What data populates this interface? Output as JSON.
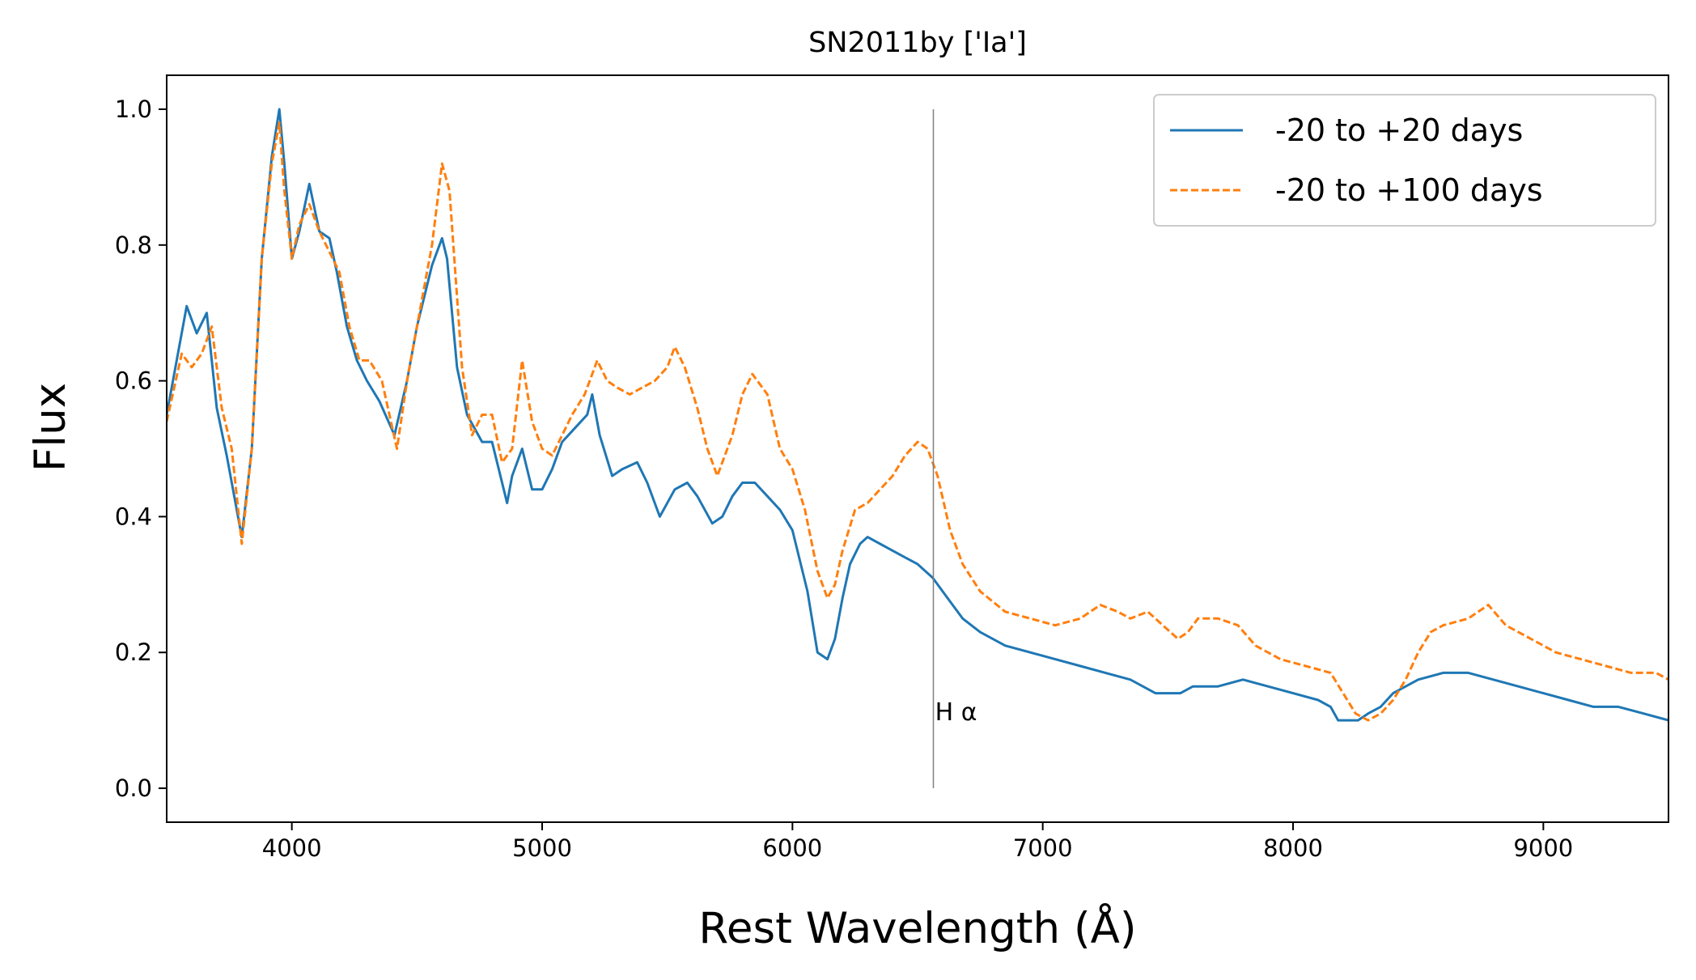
{
  "chart_data": {
    "type": "line",
    "title": "SN2011by ['Ia']",
    "xlabel": "Rest Wavelength (Å)",
    "ylabel": "Flux",
    "xlim": [
      3500,
      9500
    ],
    "ylim": [
      -0.05,
      1.05
    ],
    "xticks": [
      4000,
      5000,
      6000,
      7000,
      8000,
      9000
    ],
    "yticks": [
      0.0,
      0.2,
      0.4,
      0.6,
      0.8,
      1.0
    ],
    "xtick_labels": [
      "4000",
      "5000",
      "6000",
      "7000",
      "8000",
      "9000"
    ],
    "ytick_labels": [
      "0.0",
      "0.2",
      "0.4",
      "0.6",
      "0.8",
      "1.0"
    ],
    "grid": false,
    "legend_position": "top-right",
    "series": [
      {
        "name": "-20 to +20 days",
        "color": "#1f77b4",
        "style": "solid",
        "x": [
          3500,
          3580,
          3620,
          3660,
          3700,
          3740,
          3800,
          3840,
          3880,
          3920,
          3950,
          3970,
          4000,
          4030,
          4070,
          4110,
          4150,
          4180,
          4220,
          4260,
          4300,
          4350,
          4410,
          4460,
          4500,
          4560,
          4600,
          4620,
          4660,
          4700,
          4760,
          4800,
          4860,
          4880,
          4920,
          4960,
          5000,
          5040,
          5080,
          5130,
          5180,
          5200,
          5230,
          5280,
          5320,
          5380,
          5420,
          5470,
          5530,
          5580,
          5620,
          5680,
          5720,
          5760,
          5800,
          5850,
          5900,
          5950,
          6000,
          6060,
          6100,
          6140,
          6170,
          6200,
          6230,
          6270,
          6300,
          6350,
          6400,
          6450,
          6500,
          6560,
          6620,
          6680,
          6750,
          6850,
          6950,
          7050,
          7150,
          7250,
          7350,
          7450,
          7500,
          7550,
          7600,
          7700,
          7800,
          7900,
          8000,
          8100,
          8150,
          8180,
          8220,
          8260,
          8300,
          8350,
          8400,
          8450,
          8500,
          8600,
          8700,
          8800,
          8900,
          9000,
          9100,
          9200,
          9300,
          9400,
          9500
        ],
        "y": [
          0.55,
          0.71,
          0.67,
          0.7,
          0.56,
          0.49,
          0.37,
          0.5,
          0.78,
          0.93,
          1.0,
          0.92,
          0.78,
          0.82,
          0.89,
          0.82,
          0.81,
          0.76,
          0.68,
          0.63,
          0.6,
          0.57,
          0.52,
          0.6,
          0.68,
          0.77,
          0.81,
          0.78,
          0.62,
          0.55,
          0.51,
          0.51,
          0.42,
          0.46,
          0.5,
          0.44,
          0.44,
          0.47,
          0.51,
          0.53,
          0.55,
          0.58,
          0.52,
          0.46,
          0.47,
          0.48,
          0.45,
          0.4,
          0.44,
          0.45,
          0.43,
          0.39,
          0.4,
          0.43,
          0.45,
          0.45,
          0.43,
          0.41,
          0.38,
          0.29,
          0.2,
          0.19,
          0.22,
          0.28,
          0.33,
          0.36,
          0.37,
          0.36,
          0.35,
          0.34,
          0.33,
          0.31,
          0.28,
          0.25,
          0.23,
          0.21,
          0.2,
          0.19,
          0.18,
          0.17,
          0.16,
          0.14,
          0.14,
          0.14,
          0.15,
          0.15,
          0.16,
          0.15,
          0.14,
          0.13,
          0.12,
          0.1,
          0.1,
          0.1,
          0.11,
          0.12,
          0.14,
          0.15,
          0.16,
          0.17,
          0.17,
          0.16,
          0.15,
          0.14,
          0.13,
          0.12,
          0.12,
          0.11,
          0.1
        ]
      },
      {
        "name": "-20 to +100 days",
        "color": "#ff7f0e",
        "style": "dashed",
        "x": [
          3500,
          3560,
          3600,
          3640,
          3680,
          3720,
          3760,
          3800,
          3840,
          3880,
          3920,
          3950,
          3970,
          4000,
          4030,
          4070,
          4110,
          4150,
          4190,
          4230,
          4270,
          4310,
          4360,
          4420,
          4460,
          4520,
          4560,
          4600,
          4630,
          4680,
          4720,
          4760,
          4800,
          4840,
          4880,
          4920,
          4960,
          5000,
          5040,
          5080,
          5120,
          5170,
          5220,
          5260,
          5300,
          5350,
          5400,
          5450,
          5500,
          5530,
          5570,
          5620,
          5660,
          5700,
          5760,
          5800,
          5840,
          5900,
          5950,
          6000,
          6050,
          6100,
          6140,
          6170,
          6200,
          6250,
          6300,
          6350,
          6400,
          6450,
          6500,
          6540,
          6580,
          6630,
          6680,
          6750,
          6850,
          6950,
          7050,
          7150,
          7230,
          7300,
          7350,
          7420,
          7480,
          7540,
          7580,
          7620,
          7700,
          7780,
          7850,
          7950,
          8050,
          8150,
          8200,
          8250,
          8300,
          8350,
          8400,
          8450,
          8500,
          8550,
          8600,
          8700,
          8780,
          8850,
          8950,
          9050,
          9150,
          9250,
          9350,
          9450,
          9500
        ],
        "y": [
          0.54,
          0.64,
          0.62,
          0.64,
          0.68,
          0.56,
          0.5,
          0.36,
          0.5,
          0.78,
          0.92,
          0.98,
          0.88,
          0.78,
          0.83,
          0.86,
          0.82,
          0.79,
          0.76,
          0.68,
          0.63,
          0.63,
          0.6,
          0.5,
          0.6,
          0.72,
          0.8,
          0.92,
          0.88,
          0.62,
          0.52,
          0.55,
          0.55,
          0.48,
          0.5,
          0.63,
          0.54,
          0.5,
          0.49,
          0.52,
          0.55,
          0.58,
          0.63,
          0.6,
          0.59,
          0.58,
          0.59,
          0.6,
          0.62,
          0.65,
          0.62,
          0.56,
          0.5,
          0.46,
          0.52,
          0.58,
          0.61,
          0.58,
          0.5,
          0.47,
          0.41,
          0.32,
          0.28,
          0.3,
          0.35,
          0.41,
          0.42,
          0.44,
          0.46,
          0.49,
          0.51,
          0.5,
          0.46,
          0.38,
          0.33,
          0.29,
          0.26,
          0.25,
          0.24,
          0.25,
          0.27,
          0.26,
          0.25,
          0.26,
          0.24,
          0.22,
          0.23,
          0.25,
          0.25,
          0.24,
          0.21,
          0.19,
          0.18,
          0.17,
          0.14,
          0.11,
          0.1,
          0.11,
          0.13,
          0.16,
          0.2,
          0.23,
          0.24,
          0.25,
          0.27,
          0.24,
          0.22,
          0.2,
          0.19,
          0.18,
          0.17,
          0.17,
          0.16
        ]
      }
    ],
    "annotations": [
      {
        "type": "vline",
        "x": 6563,
        "y_from": 0.0,
        "y_to": 1.0,
        "color": "#808080",
        "label": "H α",
        "label_x": 6570,
        "label_y": 0.1
      }
    ]
  }
}
